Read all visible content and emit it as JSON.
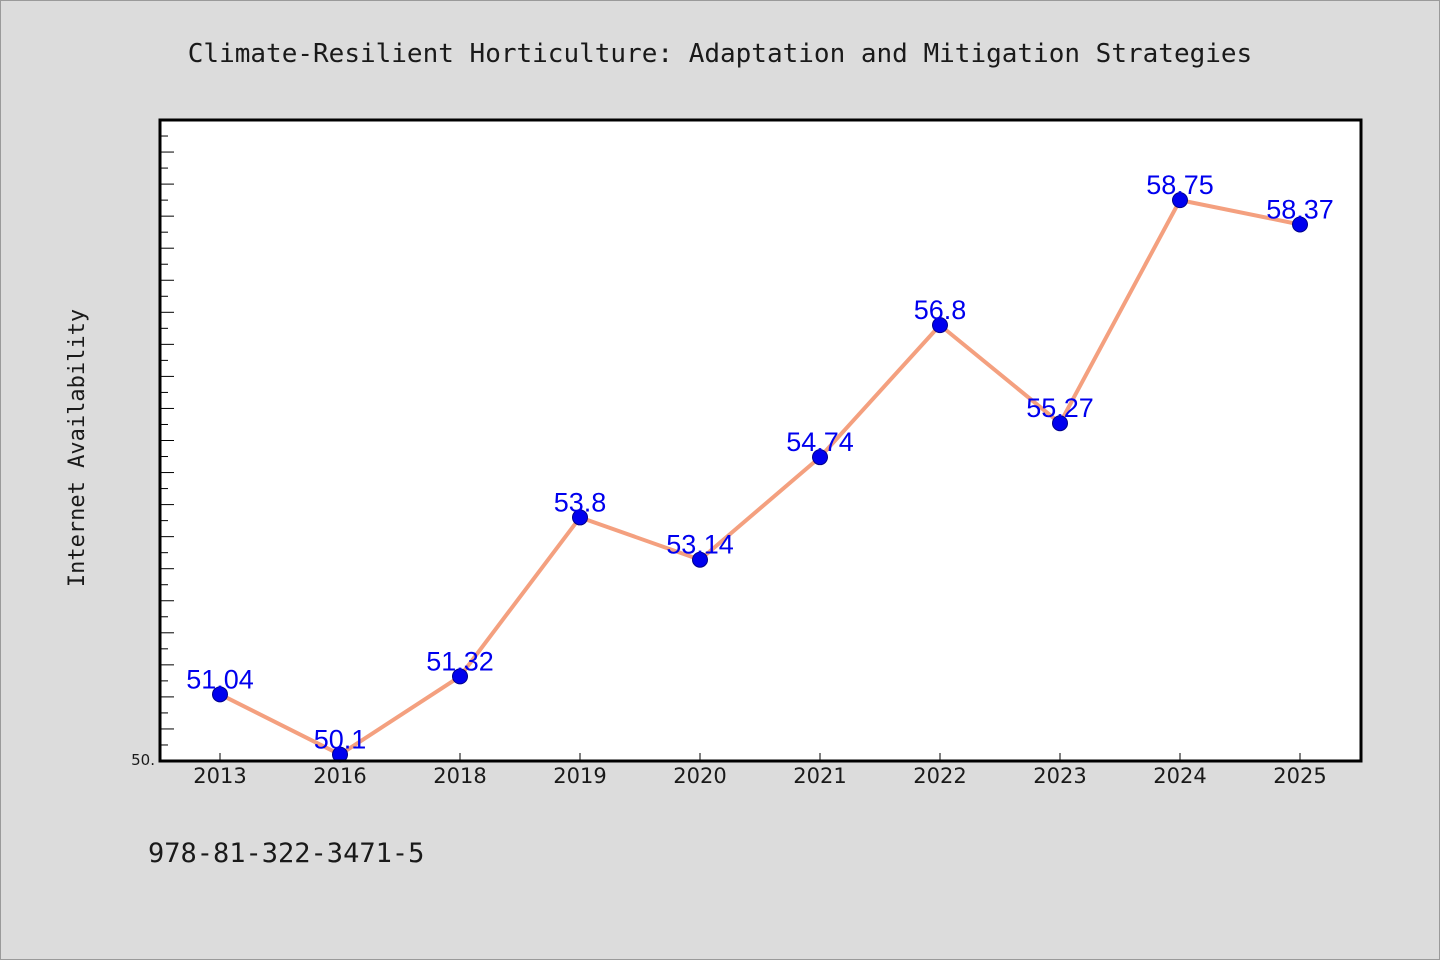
{
  "chart_data": {
    "type": "line",
    "title": "Climate-Resilient Horticulture: Adaptation and Mitigation Strategies",
    "xlabel": "",
    "ylabel": "Internet Availability",
    "categories": [
      "2013",
      "2016",
      "2018",
      "2019",
      "2020",
      "2021",
      "2022",
      "2023",
      "2024",
      "2025"
    ],
    "series": [
      {
        "values": [
          51.04,
          50.1,
          51.32,
          53.8,
          53.14,
          54.74,
          56.8,
          55.27,
          58.75,
          58.37
        ],
        "value_labels": [
          "51.04",
          "50.1",
          "51.32",
          "53.8",
          "53.14",
          "54.74",
          "56.8",
          "55.27",
          "58.75",
          "58.37"
        ]
      }
    ],
    "y_min_label": "50.",
    "ylim": [
      50.0,
      60.0
    ],
    "grid": false,
    "colors": {
      "line": "#f4a07f",
      "marker": "#0000ee",
      "label": "#0000ee",
      "plot_bg": "#ffffff",
      "page_bg": "#dcdcdc"
    }
  },
  "footer": {
    "isbn": "978-81-322-3471-5"
  }
}
